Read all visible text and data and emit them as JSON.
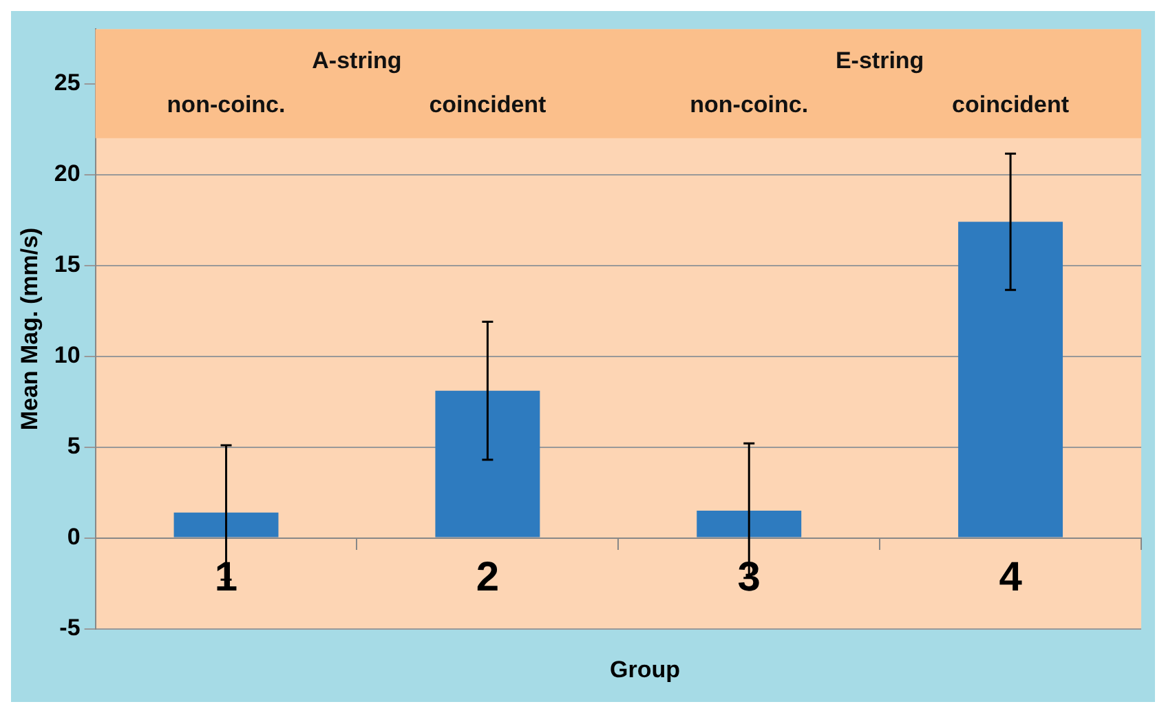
{
  "chart_data": {
    "type": "bar",
    "categories": [
      "1",
      "2",
      "3",
      "4"
    ],
    "values": [
      1.4,
      8.1,
      1.5,
      17.4
    ],
    "errors": [
      3.7,
      3.8,
      3.7,
      3.75
    ],
    "color": "#2e7bbf",
    "xlabel": "Group",
    "ylabel": "Mean Mag. (mm/s)",
    "ylim": [
      -5,
      28
    ],
    "yticks": [
      -5,
      0,
      5,
      10,
      15,
      20,
      25
    ],
    "grid": "y",
    "bands": [
      {
        "axis": "y",
        "from": 22,
        "to": 28,
        "color": "#fbbf8b"
      }
    ],
    "annotations": [
      "A-string",
      "non-coinc.",
      "coincident",
      "E-string",
      "non-coinc.",
      "coincident"
    ]
  }
}
